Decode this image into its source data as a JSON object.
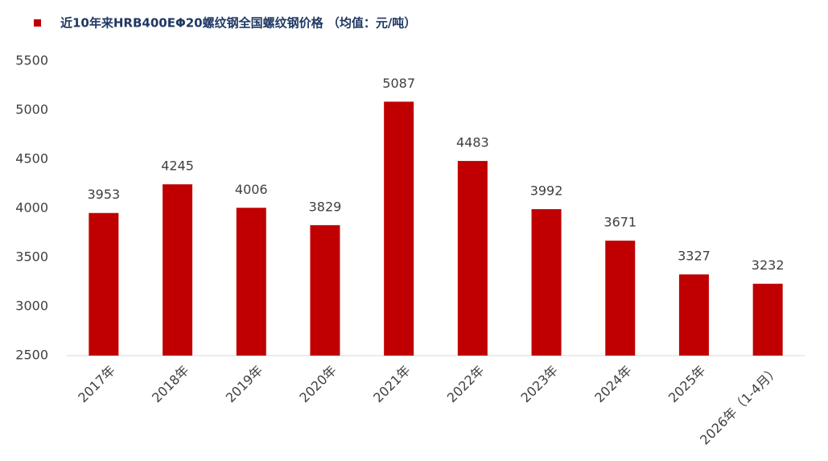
{
  "chart_data": {
    "type": "bar",
    "categories": [
      "2017年",
      "2018年",
      "2019年",
      "2020年",
      "2021年",
      "2022年",
      "2023年",
      "2024年",
      "2025年",
      "2026年（1-4月）"
    ],
    "series": [
      {
        "name": "近10年来HRB400EΦ20螺纹钢全国螺纹钢价格 （均值：元/吨）",
        "color": "#c00000",
        "values": [
          3953,
          4245,
          4006,
          3829,
          5087,
          4483,
          3992,
          3671,
          3327,
          3232
        ]
      }
    ],
    "ylim": [
      2500,
      5500
    ],
    "yticks": [
      2500,
      3000,
      3500,
      4000,
      4500,
      5000,
      5500
    ],
    "grid": false,
    "legend": "top-left"
  }
}
